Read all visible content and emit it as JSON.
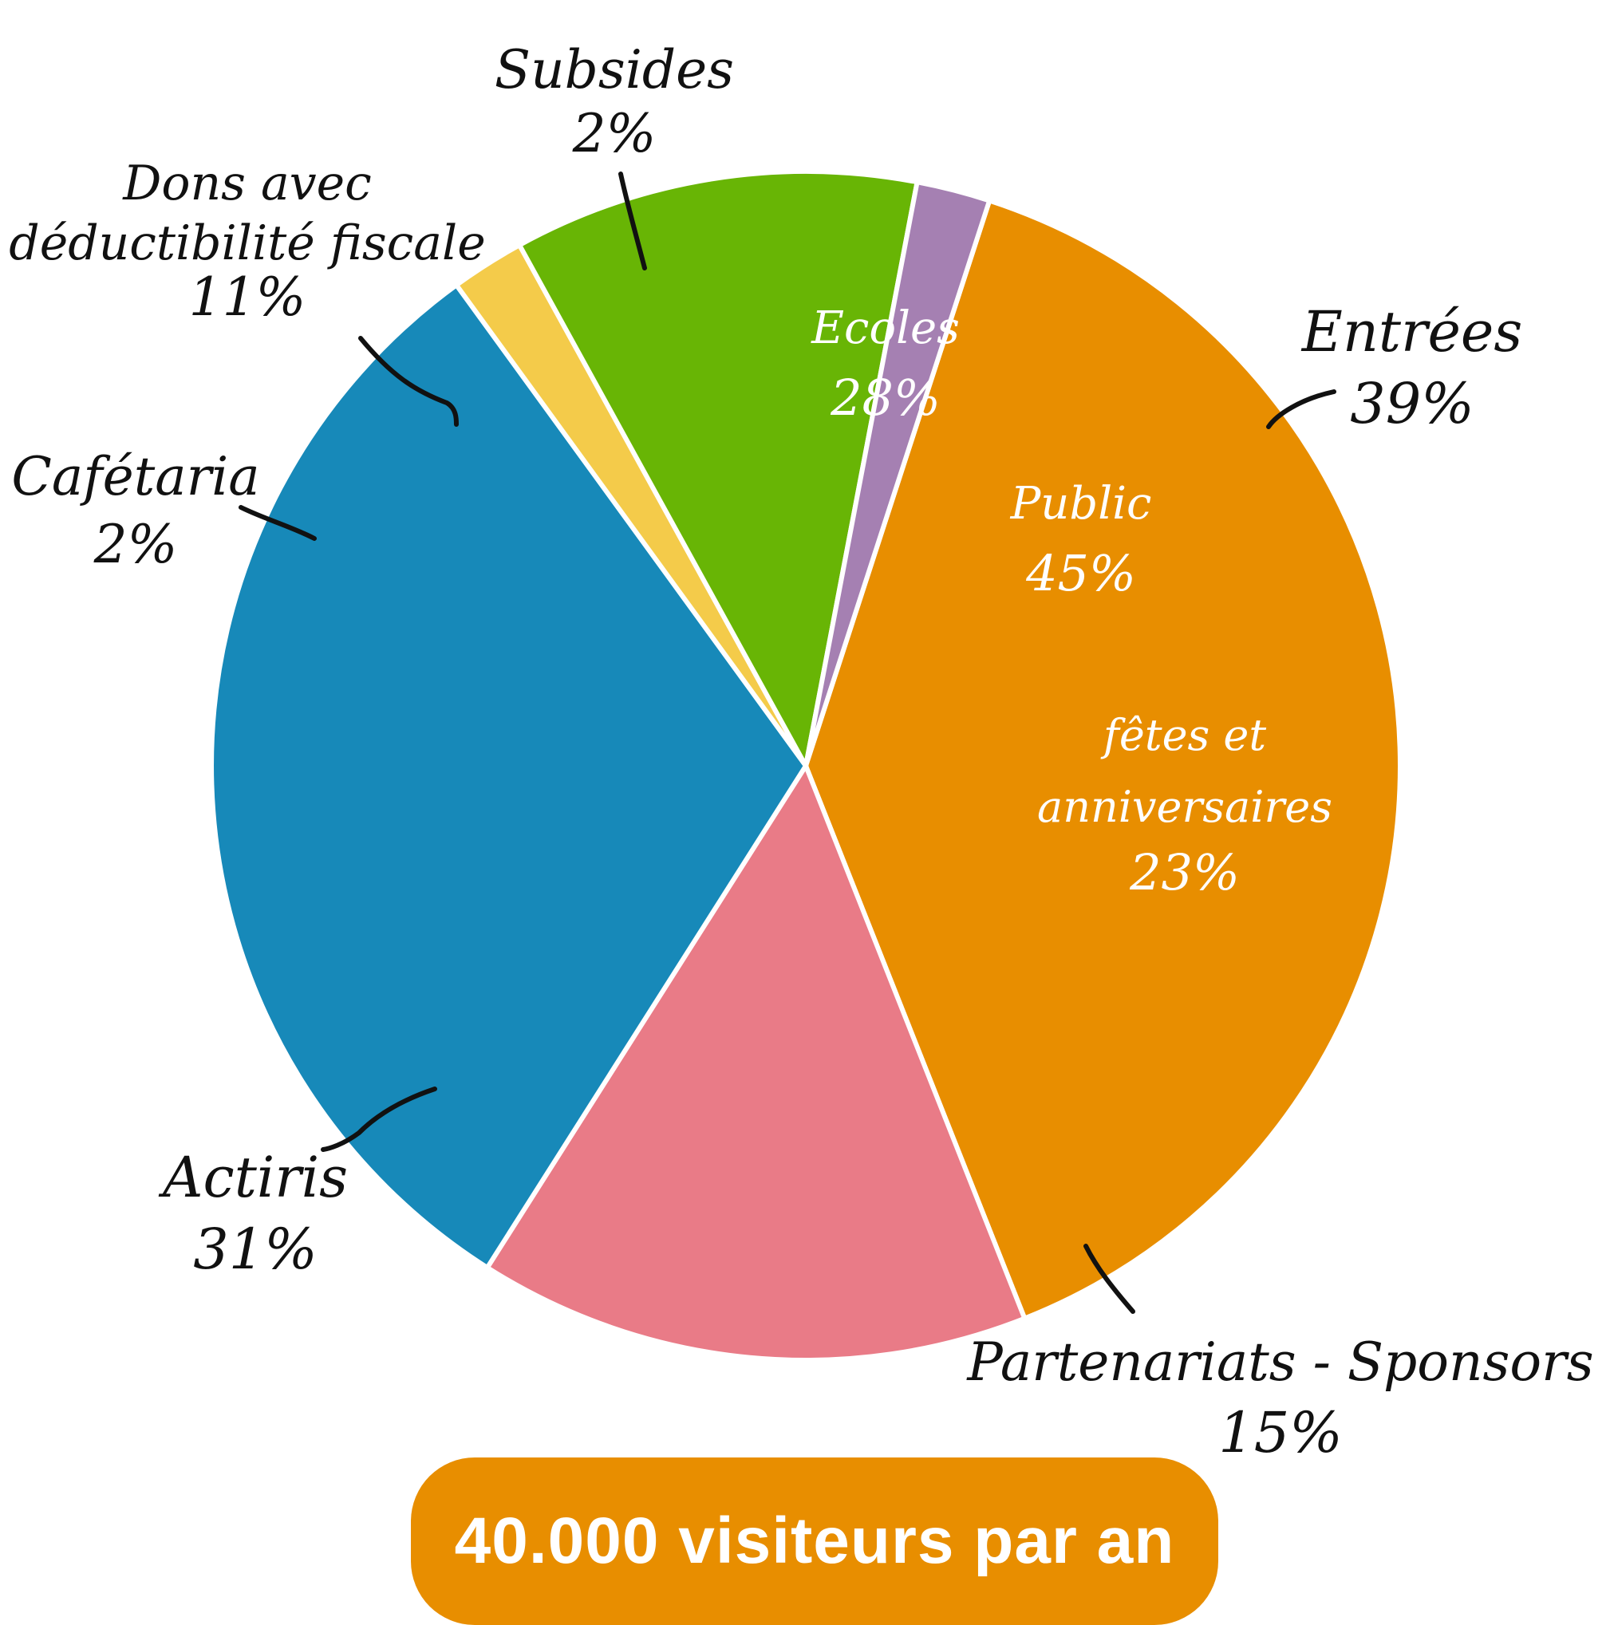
{
  "chart_data": {
    "type": "pie",
    "slices": [
      {
        "label": "Entrées",
        "value": 39,
        "percent_text": "39%",
        "color": "#e88e00",
        "sublabels": [
          {
            "label": "Ecoles",
            "percent_text": "28%"
          },
          {
            "label": "Public",
            "percent_text": "45%"
          },
          {
            "label": "fêtes et anniversaires",
            "percent_text": "23%"
          }
        ]
      },
      {
        "label": "Partenariats - Sponsors",
        "value": 15,
        "percent_text": "15%",
        "color": "#e97b87"
      },
      {
        "label": "Actiris",
        "value": 31,
        "percent_text": "31%",
        "color": "#1789b9"
      },
      {
        "label": "Cafétaria",
        "value": 2,
        "percent_text": "2%",
        "color": "#f4cb4a"
      },
      {
        "label": "Dons avec déductibilité fiscale",
        "value": 11,
        "percent_text": "11%",
        "color": "#68b505"
      },
      {
        "label": "Subsides",
        "value": 2,
        "percent_text": "2%",
        "color": "#a580b2"
      }
    ],
    "legend": "none",
    "footer": "40.000 visiteurs par an"
  }
}
